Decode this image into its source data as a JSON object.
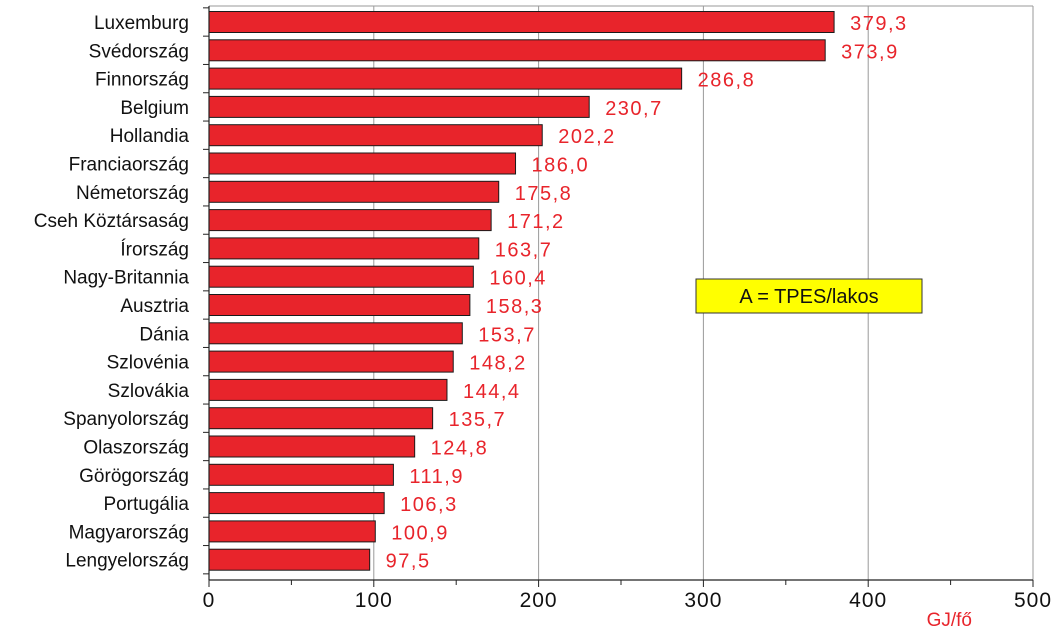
{
  "chart_data": {
    "type": "bar",
    "orientation": "horizontal",
    "categories": [
      "Luxemburg",
      "Svédország",
      "Finnország",
      "Belgium",
      "Hollandia",
      "Franciaország",
      "Németország",
      "Cseh Köztársaság",
      "Írország",
      "Nagy-Britannia",
      "Ausztria",
      "Dánia",
      "Szlovénia",
      "Szlovákia",
      "Spanyolország",
      "Olaszország",
      "Görögország",
      "Portugália",
      "Magyarország",
      "Lengyelország"
    ],
    "values": [
      379.3,
      373.9,
      286.8,
      230.7,
      202.2,
      186.0,
      175.8,
      171.2,
      163.7,
      160.4,
      158.3,
      153.7,
      148.2,
      144.4,
      135.7,
      124.8,
      111.9,
      106.3,
      100.9,
      97.5
    ],
    "value_labels": [
      "379,3",
      "373,9",
      "286,8",
      "230,7",
      "202,2",
      "186,0",
      "175,8",
      "171,2",
      "163,7",
      "160,4",
      "158,3",
      "153,7",
      "148,2",
      "144,4",
      "135,7",
      "124,8",
      "111,9",
      "106,3",
      "100,9",
      "97,5"
    ],
    "xlim": [
      0,
      500
    ],
    "xticks": [
      0,
      100,
      200,
      300,
      400,
      500
    ],
    "xtick_labels": [
      "0",
      "100",
      "200",
      "300",
      "400",
      "500"
    ],
    "xlabel": "GJ/fő",
    "ylabel": "",
    "title": "",
    "grid": true,
    "annotation": "A = TPES/lakos",
    "colors": {
      "bar": "#e8242b",
      "bar_edge": "#1a1a1a",
      "value_label": "#e8242b",
      "grid": "#9a9a9a",
      "annotation_bg": "#ffff00",
      "annotation_border": "#333333"
    }
  }
}
